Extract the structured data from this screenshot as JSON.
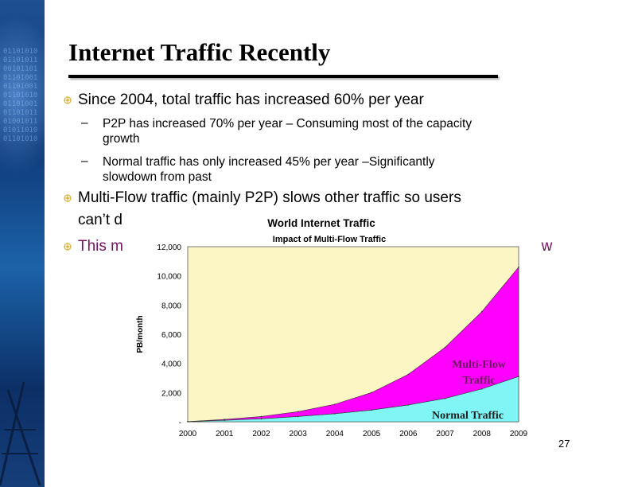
{
  "slide": {
    "title": "Internet Traffic Recently",
    "page_number": "27"
  },
  "bullets": [
    {
      "text": "Since 2004, total traffic has increased 60% per year",
      "sub": [
        {
          "line1": "P2P has increased 70% per year – Consuming most of the capacity",
          "line2": "growth"
        },
        {
          "line1": "Normal traffic has only increased 45% per year –Significantly",
          "line2": "slowdown from past"
        }
      ]
    },
    {
      "line1": "Multi-Flow traffic (mainly P2P) slows other traffic so users",
      "line2": "can’t d"
    },
    {
      "text_start": "This m",
      "text_end": "ow"
    }
  ],
  "colors": {
    "bullet": "#d9b23a",
    "plot_bg": "#fbf6c4",
    "multi_flow": "#ff00ff",
    "normal": "#7ff5f5",
    "emphasis_text": "#7a1060"
  },
  "chart_data": {
    "type": "area",
    "title": "World Internet Traffic",
    "subtitle": "Impact of Multi-Flow  Traffic",
    "ylabel": "PB/month",
    "xlabel": "",
    "ylim": [
      0,
      12000
    ],
    "xlim": [
      2000,
      2009
    ],
    "x": [
      2000,
      2001,
      2002,
      2003,
      2004,
      2005,
      2006,
      2007,
      2008,
      2009
    ],
    "x_tick_labels": [
      "2000",
      "2001",
      "2002",
      "2003",
      "2004",
      "2005",
      "2006",
      "2007",
      "2008",
      "2009"
    ],
    "y_tick_labels": [
      "-",
      "2,000",
      "4,000",
      "6,000",
      "8,000",
      "10,000",
      "12,000"
    ],
    "y_ticks": [
      0,
      2000,
      4000,
      6000,
      8000,
      10000,
      12000
    ],
    "stacked": true,
    "grid": false,
    "series": [
      {
        "name": "Normal Traffic",
        "values": [
          10,
          100,
          200,
          360,
          550,
          800,
          1150,
          1600,
          2250,
          3100
        ]
      },
      {
        "name": "Multi-Flow Traffic",
        "values": [
          0,
          60,
          160,
          330,
          650,
          1200,
          2100,
          3500,
          5300,
          7500
        ]
      }
    ],
    "labels": {
      "multi_flow_line1": "Multi-Flow",
      "multi_flow_line2": "Traffic",
      "normal": "Normal Traffic"
    }
  }
}
